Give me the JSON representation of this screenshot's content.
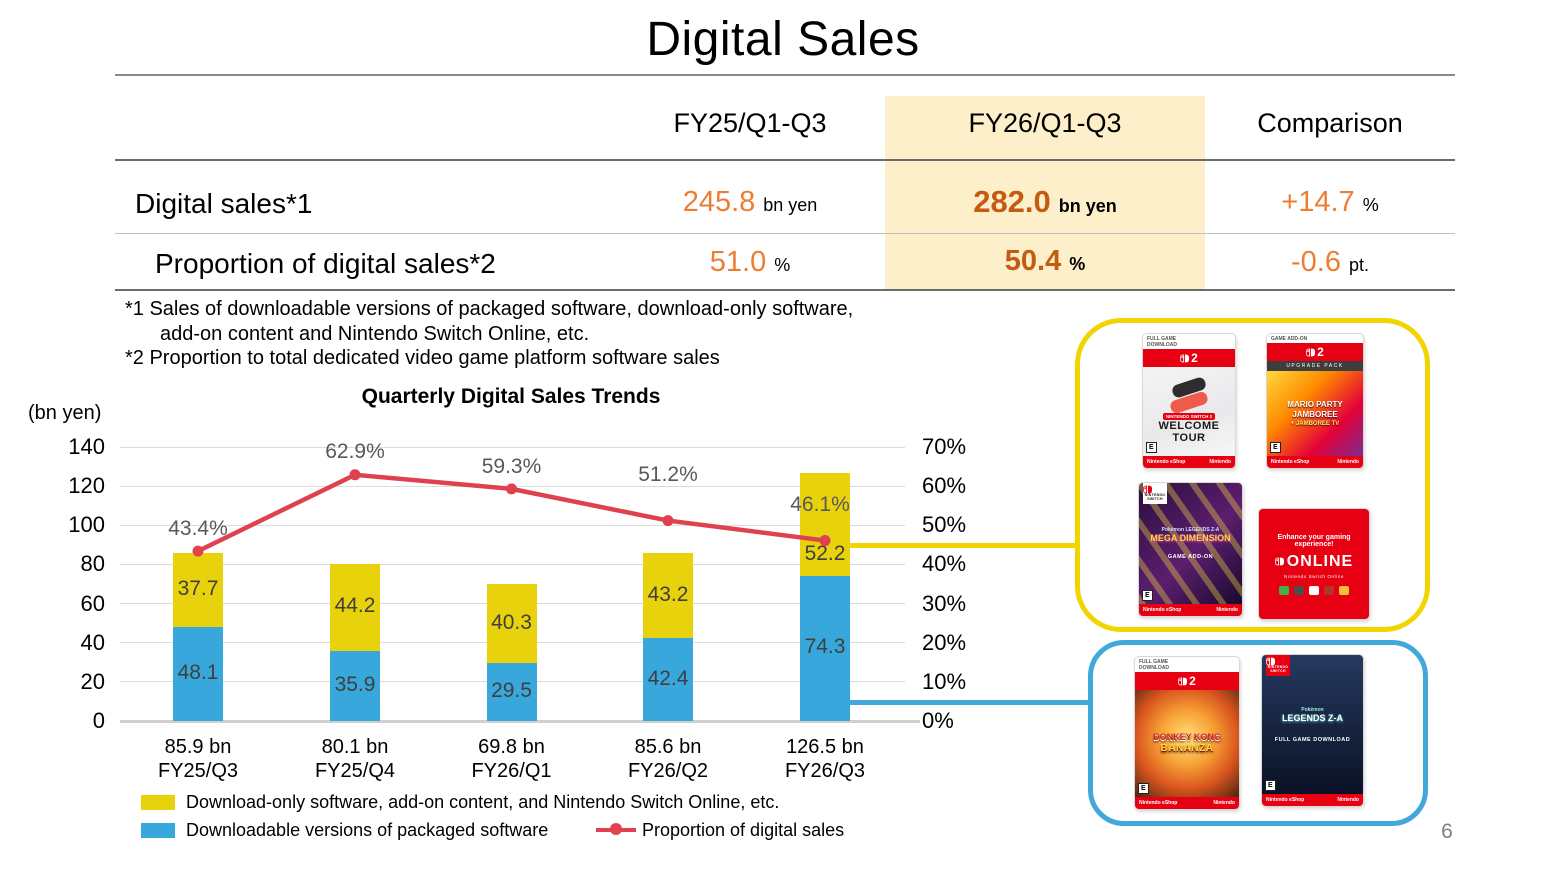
{
  "slide": {
    "title": "Digital Sales",
    "page_number": "6"
  },
  "summary_table": {
    "columns": {
      "fy25": "FY25/Q1-Q3",
      "fy26": "FY26/Q1-Q3",
      "comparison": "Comparison"
    },
    "highlight_color": "#FCEFC9",
    "rows": [
      {
        "label": "Digital sales*1",
        "fy25_value": "245.8",
        "fy25_unit": "bn yen",
        "fy26_value": "282.0",
        "fy26_unit": "bn yen",
        "comparison_value": "+14.7",
        "comparison_unit": "%"
      },
      {
        "label": "Proportion of digital sales*2",
        "fy25_value": "51.0",
        "fy25_unit": "%",
        "fy26_value": "50.4",
        "fy26_unit": "%",
        "comparison_value": "-0.6",
        "comparison_unit": "pt."
      }
    ],
    "accent_orange": "#ED7D31",
    "accent_orange_dark": "#C55A11"
  },
  "footnotes": [
    "*1 Sales of downloadable versions of packaged software, download-only software,",
    "add-on content and Nintendo Switch Online, etc.",
    "*2 Proportion to total dedicated video game platform software sales"
  ],
  "chart_data": {
    "type": "combo-stacked-bar-line",
    "title": "Quarterly Digital Sales Trends",
    "y_left_label": "(bn yen)",
    "categories": [
      "FY25/Q3",
      "FY25/Q4",
      "FY26/Q1",
      "FY26/Q2",
      "FY26/Q3"
    ],
    "totals_labels": [
      "85.9 bn",
      "80.1 bn",
      "69.8 bn",
      "85.6 bn",
      "126.5 bn"
    ],
    "series": [
      {
        "name": "Downloadable versions of packaged software",
        "type": "bar",
        "color": "#38A8DC",
        "values": [
          48.1,
          35.9,
          29.5,
          42.4,
          74.3
        ]
      },
      {
        "name": "Download-only software, add-on content, and Nintendo Switch Online, etc.",
        "type": "bar",
        "color": "#E8D20B",
        "values": [
          37.7,
          44.2,
          40.3,
          43.2,
          52.2
        ]
      },
      {
        "name": "Proportion of digital sales",
        "type": "line",
        "color": "#E0414F",
        "values_pct": [
          43.4,
          62.9,
          59.3,
          51.2,
          46.1
        ]
      }
    ],
    "y_left_ticks": [
      140,
      120,
      100,
      80,
      60,
      40,
      20,
      0
    ],
    "y_right_ticks": [
      "70%",
      "60%",
      "50%",
      "40%",
      "30%",
      "20%",
      "10%",
      "0%"
    ],
    "y_left_range": [
      0,
      140
    ],
    "y_right_range": [
      0,
      70
    ],
    "grid": true,
    "legend_position": "bottom"
  },
  "legend": {
    "download_only": "Download-only software, add-on content, and Nintendo Switch Online, etc.",
    "packaged": "Downloadable versions of packaged software",
    "proportion": "Proportion of digital sales"
  },
  "showcase": {
    "yellow_box_color": "#F2D500",
    "blue_box_color": "#41A8DC",
    "nintendo_red": "#E60012",
    "yellow_box_cards": [
      {
        "id": "welcome-tour",
        "style": "wt",
        "eyebrow": "FULL GAME DOWNLOAD",
        "platform_num": "2",
        "chip": "NINTENDO SWITCH 2",
        "title": "WELCOME TOUR",
        "rating": "E",
        "footer_left": "Nintendo eShop",
        "footer_right": "Nintendo"
      },
      {
        "id": "mario-party-jamboree",
        "style": "mp",
        "eyebrow": "GAME ADD-ON",
        "platform_num": "2",
        "subbanner": "UPGRADE PACK",
        "title": "MARIO PARTY JAMBOREE",
        "subtitle": "+ JAMBOREE TV",
        "rating": "E",
        "footer_left": "Nintendo eShop",
        "footer_right": "Nintendo"
      },
      {
        "id": "pokemon-mega-dimension",
        "style": "pk",
        "badge": "NINTENDO SWITCH",
        "overline": "Pokémon LEGENDS Z-A",
        "title": "MEGA DIMENSION",
        "caption": "GAME ADD-ON",
        "rating": "E",
        "footer_left": "Nintendo eShop",
        "footer_right": "Nintendo"
      },
      {
        "id": "nintendo-switch-online",
        "style": "nso",
        "headline": "Enhance your gaming experience!",
        "logo_word": "ONLINE",
        "sub": "Nintendo Switch Online"
      }
    ],
    "blue_box_cards": [
      {
        "id": "donkey-kong-bananza",
        "style": "dk",
        "eyebrow": "FULL GAME DOWNLOAD",
        "platform_num": "2",
        "title": "DONKEY KONG",
        "subtitle": "BANANZA",
        "rating": "E",
        "footer_left": "Nintendo eShop",
        "footer_right": "Nintendo"
      },
      {
        "id": "pokemon-legends-za",
        "style": "za",
        "badge": "NINTENDO SWITCH",
        "overline": "Pokémon",
        "title": "LEGENDS Z-A",
        "caption": "FULL GAME DOWNLOAD",
        "rating": "E",
        "footer_left": "Nintendo eShop",
        "footer_right": "Nintendo"
      }
    ]
  }
}
